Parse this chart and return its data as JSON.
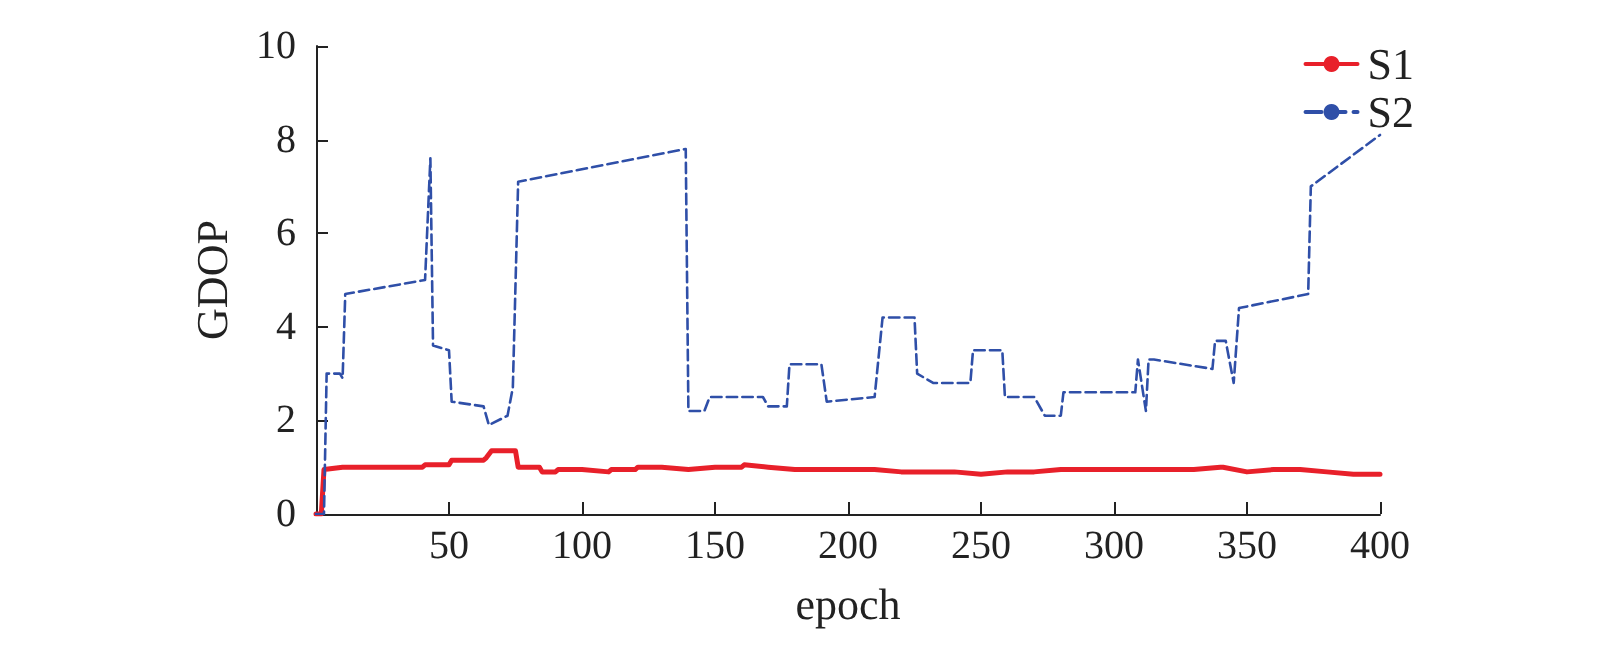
{
  "chart_data": {
    "type": "line",
    "xlabel": "epoch",
    "ylabel": "GDOP",
    "xlim": [
      0,
      400
    ],
    "ylim": [
      0,
      10
    ],
    "xticks": [
      50,
      100,
      150,
      200,
      250,
      300,
      350,
      400
    ],
    "yticks": [
      0,
      2,
      4,
      6,
      8,
      10
    ],
    "grid": false,
    "legend": "top right",
    "marker": "none",
    "series": [
      {
        "name": "S1",
        "color": "#e8202a",
        "line_style": "solid",
        "x": [
          0,
          2,
          3,
          10,
          40,
          41,
          50,
          51,
          63,
          64,
          66,
          75,
          76,
          84,
          85,
          90,
          91,
          100,
          110,
          111,
          120,
          121,
          130,
          140,
          150,
          160,
          161,
          170,
          180,
          190,
          200,
          210,
          220,
          230,
          240,
          250,
          260,
          270,
          280,
          290,
          300,
          310,
          320,
          330,
          340,
          341,
          350,
          360,
          370,
          380,
          390,
          400
        ],
        "values": [
          0,
          0,
          0.95,
          1.0,
          1.0,
          1.05,
          1.05,
          1.15,
          1.15,
          1.2,
          1.35,
          1.35,
          1.0,
          1.0,
          0.9,
          0.9,
          0.95,
          0.95,
          0.9,
          0.95,
          0.95,
          1.0,
          1.0,
          0.95,
          1.0,
          1.0,
          1.05,
          1.0,
          0.95,
          0.95,
          0.95,
          0.95,
          0.9,
          0.9,
          0.9,
          0.85,
          0.9,
          0.9,
          0.95,
          0.95,
          0.95,
          0.95,
          0.95,
          0.95,
          1.0,
          1.0,
          0.9,
          0.95,
          0.95,
          0.9,
          0.85,
          0.85
        ]
      },
      {
        "name": "S2",
        "color": "#2f4fa8",
        "line_style": "dashed",
        "x": [
          0,
          3,
          4,
          9,
          10,
          11,
          41,
          43,
          44,
          50,
          51,
          63,
          65,
          72,
          74,
          76,
          139,
          140,
          146,
          148,
          168,
          170,
          177,
          178,
          190,
          192,
          210,
          213,
          225,
          226,
          232,
          246,
          247,
          258,
          259,
          270,
          274,
          280,
          281,
          308,
          309,
          312,
          313,
          315,
          337,
          338,
          342,
          345,
          347,
          373,
          374,
          400
        ],
        "values": [
          0,
          0,
          3.0,
          3.0,
          2.9,
          4.7,
          5.0,
          7.6,
          3.6,
          3.5,
          2.4,
          2.3,
          1.9,
          2.1,
          2.7,
          7.1,
          7.8,
          2.2,
          2.2,
          2.5,
          2.5,
          2.3,
          2.3,
          3.2,
          3.2,
          2.4,
          2.5,
          4.2,
          4.2,
          3.0,
          2.8,
          2.8,
          3.5,
          3.5,
          2.5,
          2.5,
          2.1,
          2.1,
          2.6,
          2.6,
          3.3,
          2.2,
          3.3,
          3.3,
          3.1,
          3.7,
          3.7,
          2.8,
          4.4,
          4.7,
          7.0,
          8.1
        ]
      }
    ]
  }
}
